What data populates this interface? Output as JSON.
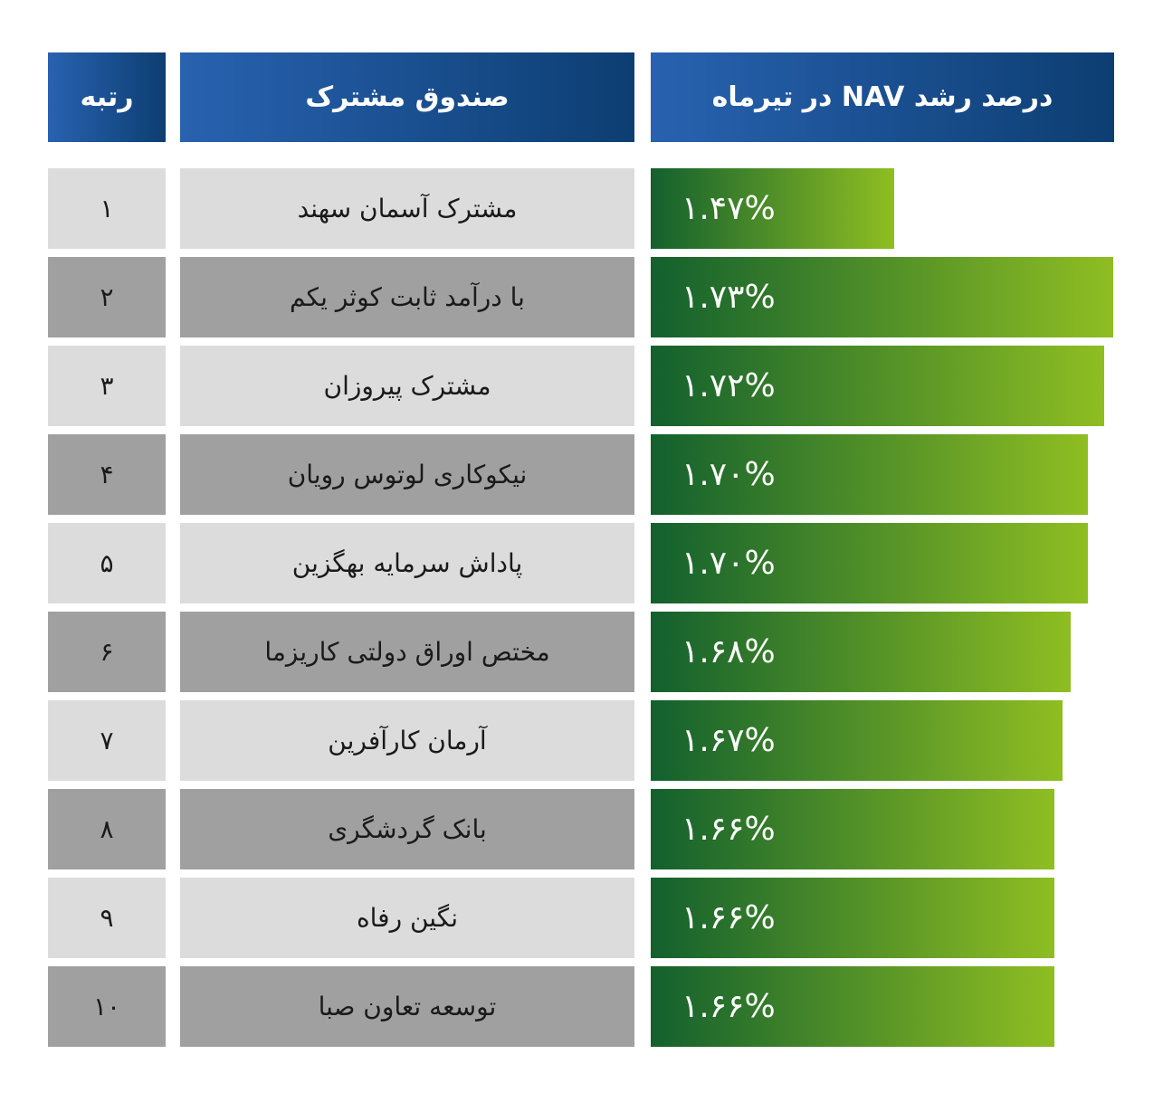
{
  "header": {
    "rank": "رتبه",
    "fund": "صندوق مشترک",
    "growth": "درصد رشد NAV در تیرماه"
  },
  "colors": {
    "header_start": "#2862b0",
    "header_end": "#0d3e72",
    "bar_start": "#12602e",
    "bar_end": "#8fbe22",
    "row_light": "#dcdcdc",
    "row_dark": "#a0a0a0"
  },
  "chart_data": {
    "type": "bar",
    "orientation": "horizontal",
    "categories": [
      "مشترک آسمان سهند",
      "با درآمد ثابت کوثر یکم",
      "مشترک پیروزان",
      "نیکوکاری لوتوس رویان",
      "پاداش سرمایه بهگزین",
      "مختص اوراق دولتی کاریزما",
      "آرمان کارآفرین",
      "بانک گردشگری",
      "نگین رفاه",
      "توسعه تعاون صبا"
    ],
    "ranks": [
      "۱",
      "۲",
      "۳",
      "۴",
      "۵",
      "۶",
      "۷",
      "۸",
      "۹",
      "۱۰"
    ],
    "values": [
      1.47,
      1.73,
      1.72,
      1.7,
      1.7,
      1.68,
      1.67,
      1.66,
      1.66,
      1.66
    ],
    "labels": [
      "۱.۴۷%",
      "۱.۷۳%",
      "۱.۷۲%",
      "۱.۷۰%",
      "۱.۷۰%",
      "۱.۶۸%",
      "۱.۶۷%",
      "۱.۶۶%",
      "۱.۶۶%",
      "۱.۶۶%"
    ],
    "unit": "%"
  }
}
